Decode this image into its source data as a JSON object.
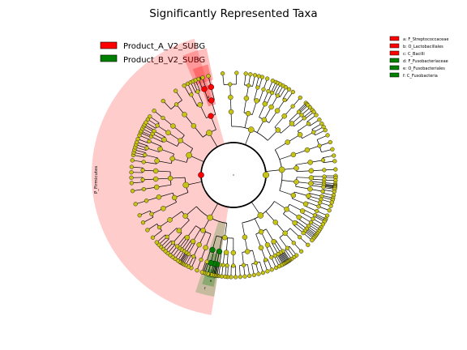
{
  "title": "Significantly Represented Taxa",
  "groups": [
    {
      "label": "Product_A_V2_SUBG",
      "color": "#ff0000"
    },
    {
      "label": "Product_B_V2_SUBG",
      "color": "#008000"
    }
  ],
  "key": [
    {
      "label": "a: F_Streptococcaceae",
      "color": "#ff0000"
    },
    {
      "label": "b: O_Lactobacillales",
      "color": "#ff0000"
    },
    {
      "label": "c: C_Bacilli",
      "color": "#ff0000"
    },
    {
      "label": "d: F_Fusobacteriaceae",
      "color": "#008000"
    },
    {
      "label": "e: O_Fusobacteriales",
      "color": "#008000"
    },
    {
      "label": "f: C_Fusobacteria",
      "color": "#008000"
    }
  ],
  "sector_label": "P_Firmicutes",
  "sector_tags": [
    "a",
    "b",
    "c",
    "d",
    "e",
    "f"
  ],
  "colors": {
    "node_default": "#c8c416",
    "node_red": "#ff0000",
    "node_green": "#008000",
    "sector_red": "#ff0000",
    "sector_green": "#008000"
  }
}
